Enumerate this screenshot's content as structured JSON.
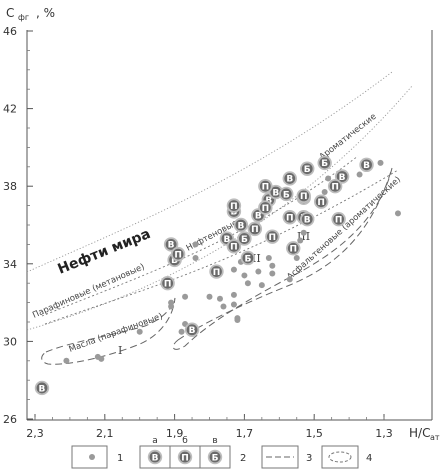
{
  "chart_data": {
    "type": "scatter",
    "ylabel": "C",
    "ylabel_sub": "фг",
    "ylabel_unit": ", %",
    "xlabel": "H/C",
    "xlabel_sub": "ат",
    "xlim": [
      2.3,
      1.25
    ],
    "ylim": [
      26,
      46
    ],
    "x_ticks": [
      "2,3",
      "2,1",
      "1,9",
      "1,7",
      "1,5",
      "1,3"
    ],
    "y_ticks": [
      "26",
      "30",
      "34",
      "38",
      "42",
      "46"
    ],
    "title_band": "Нефти мира",
    "zone_labels": [
      {
        "id": "paraffin_band",
        "text": "Парафиновые (метановые)"
      },
      {
        "id": "naphthene",
        "text": "Нафтеновые"
      },
      {
        "id": "aromatic",
        "text": "Ароматические"
      },
      {
        "id": "asphalt",
        "text": "Асфальтеновые (ароматические)"
      },
      {
        "id": "oils",
        "text": "Масла (парафиновые)"
      },
      {
        "id": "r1",
        "text": "I"
      },
      {
        "id": "r2",
        "text": "II"
      },
      {
        "id": "r3",
        "text": "III"
      }
    ],
    "series": [
      {
        "key": "1",
        "points": [
          [
            2.21,
            29.0
          ],
          [
            2.12,
            29.2
          ],
          [
            2.11,
            29.1
          ],
          [
            2.0,
            30.5
          ],
          [
            1.91,
            32.0
          ],
          [
            1.91,
            31.8
          ],
          [
            1.88,
            30.5
          ],
          [
            1.87,
            32.3
          ],
          [
            1.87,
            30.9
          ],
          [
            1.84,
            34.3
          ],
          [
            1.84,
            35.0
          ],
          [
            1.8,
            32.3
          ],
          [
            1.77,
            32.2
          ],
          [
            1.76,
            31.8
          ],
          [
            1.73,
            33.7
          ],
          [
            1.73,
            32.4
          ],
          [
            1.73,
            31.9
          ],
          [
            1.72,
            31.2
          ],
          [
            1.72,
            31.1
          ],
          [
            1.71,
            34.1
          ],
          [
            1.7,
            33.4
          ],
          [
            1.69,
            33.0
          ],
          [
            1.66,
            33.6
          ],
          [
            1.65,
            32.9
          ],
          [
            1.63,
            34.3
          ],
          [
            1.62,
            33.9
          ],
          [
            1.62,
            33.5
          ],
          [
            1.57,
            33.2
          ],
          [
            1.55,
            34.3
          ],
          [
            1.54,
            35.2
          ],
          [
            1.53,
            35.6
          ],
          [
            1.47,
            37.7
          ],
          [
            1.46,
            38.4
          ],
          [
            1.43,
            37.9
          ],
          [
            1.37,
            38.6
          ],
          [
            1.31,
            39.2
          ],
          [
            1.26,
            36.6
          ]
        ]
      },
      {
        "key": "2а",
        "label": "В",
        "points": [
          [
            2.28,
            27.6
          ],
          [
            1.91,
            35.0
          ],
          [
            1.9,
            34.2
          ],
          [
            1.85,
            30.6
          ],
          [
            1.75,
            35.3
          ],
          [
            1.73,
            36.7
          ],
          [
            1.71,
            36.0
          ],
          [
            1.66,
            36.5
          ],
          [
            1.63,
            37.3
          ],
          [
            1.61,
            37.7
          ],
          [
            1.57,
            38.4
          ],
          [
            1.53,
            36.4
          ],
          [
            1.53,
            37.4
          ],
          [
            1.52,
            36.3
          ],
          [
            1.42,
            38.5
          ],
          [
            1.35,
            39.1
          ]
        ]
      },
      {
        "key": "2б",
        "label": "П",
        "points": [
          [
            1.92,
            33.0
          ],
          [
            1.89,
            34.5
          ],
          [
            1.78,
            33.6
          ],
          [
            1.73,
            34.9
          ],
          [
            1.73,
            37.0
          ],
          [
            1.67,
            35.8
          ],
          [
            1.64,
            36.9
          ],
          [
            1.64,
            38.0
          ],
          [
            1.62,
            35.4
          ],
          [
            1.57,
            36.4
          ],
          [
            1.56,
            34.8
          ],
          [
            1.53,
            37.5
          ],
          [
            1.48,
            37.2
          ],
          [
            1.44,
            38.0
          ],
          [
            1.43,
            36.3
          ]
        ]
      },
      {
        "key": "2в",
        "label": "Б",
        "points": [
          [
            1.7,
            35.3
          ],
          [
            1.69,
            34.3
          ],
          [
            1.58,
            37.6
          ],
          [
            1.52,
            38.9
          ],
          [
            1.47,
            39.2
          ]
        ]
      }
    ],
    "legend": {
      "items": [
        {
          "key": "1",
          "label": "1"
        },
        {
          "key": "2",
          "label": "2",
          "sub": [
            "а",
            "б",
            "в"
          ],
          "letters": [
            "В",
            "П",
            "Б"
          ]
        },
        {
          "key": "3",
          "label": "3"
        },
        {
          "key": "4",
          "label": "4"
        }
      ]
    }
  }
}
